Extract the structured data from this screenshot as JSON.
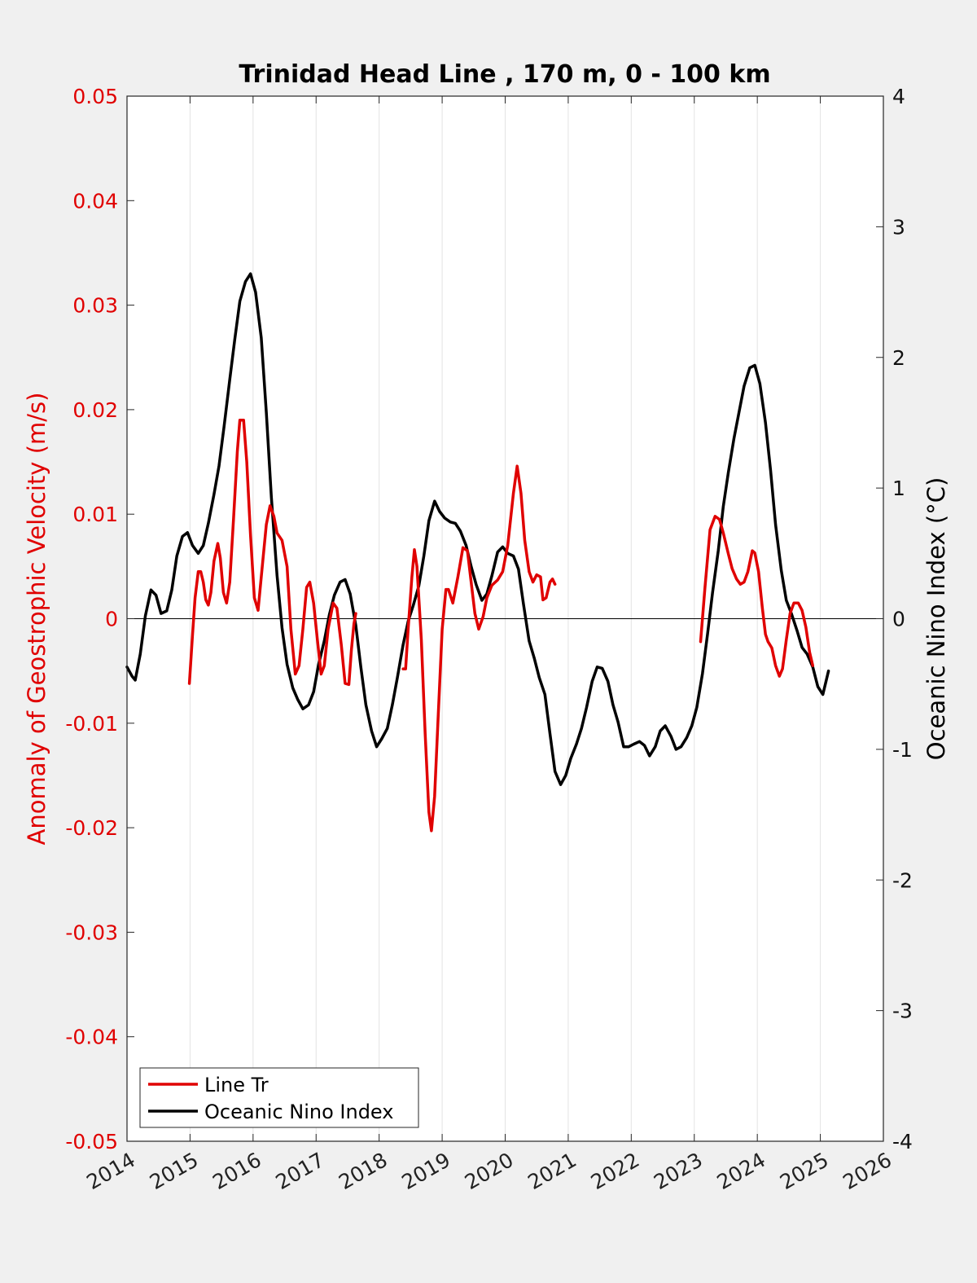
{
  "chart_data": {
    "type": "line",
    "title": "Trinidad Head Line , 170 m, 0 - 100 km",
    "ylabel_left": "Anomaly of Geostrophic Velocity (m/s)",
    "ylabel_right": "Oceanic Nino Index (°C)",
    "xlim": [
      2014,
      2026
    ],
    "ylim_left": [
      -0.05,
      0.05
    ],
    "ylim_right": [
      -4,
      4
    ],
    "x_ticks": [
      "2014",
      "2015",
      "2016",
      "2017",
      "2018",
      "2019",
      "2020",
      "2021",
      "2022",
      "2023",
      "2024",
      "2025",
      "2026"
    ],
    "y_ticks_left": [
      "0.05",
      "0.04",
      "0.03",
      "0.02",
      "0.01",
      "0",
      "-0.01",
      "-0.02",
      "-0.03",
      "-0.04",
      "-0.05"
    ],
    "y_ticks_right": [
      "4",
      "3",
      "2",
      "1",
      "0",
      "-1",
      "-2",
      "-3",
      "-4"
    ],
    "grid": "vertical",
    "legend_position": "bottom-left",
    "colors": {
      "line_tr": "#e00000",
      "oni": "#000000",
      "left_axis": "#e00000",
      "background": "#f0f0f0"
    },
    "series": [
      {
        "name": "Line Tr",
        "axis": "left",
        "segments": [
          [
            [
              2014.99,
              -0.0062
            ],
            [
              2015.04,
              -0.0015
            ],
            [
              2015.08,
              0.002
            ],
            [
              2015.13,
              0.0045
            ],
            [
              2015.17,
              0.0045
            ],
            [
              2015.21,
              0.0035
            ],
            [
              2015.25,
              0.0018
            ],
            [
              2015.29,
              0.0013
            ],
            [
              2015.33,
              0.0025
            ],
            [
              2015.38,
              0.0055
            ],
            [
              2015.44,
              0.0072
            ],
            [
              2015.48,
              0.0058
            ],
            [
              2015.53,
              0.0025
            ],
            [
              2015.58,
              0.0015
            ],
            [
              2015.63,
              0.0035
            ],
            [
              2015.69,
              0.0095
            ],
            [
              2015.75,
              0.016
            ],
            [
              2015.79,
              0.019
            ],
            [
              2015.85,
              0.019
            ],
            [
              2015.9,
              0.015
            ],
            [
              2015.96,
              0.008
            ],
            [
              2016.02,
              0.002
            ],
            [
              2016.08,
              0.0008
            ],
            [
              2016.13,
              0.004
            ],
            [
              2016.21,
              0.009
            ],
            [
              2016.27,
              0.0108
            ],
            [
              2016.33,
              0.0098
            ],
            [
              2016.38,
              0.0082
            ],
            [
              2016.46,
              0.0075
            ],
            [
              2016.54,
              0.005
            ],
            [
              2016.6,
              -0.001
            ],
            [
              2016.67,
              -0.0053
            ],
            [
              2016.73,
              -0.0045
            ],
            [
              2016.79,
              -0.001
            ],
            [
              2016.85,
              0.003
            ],
            [
              2016.9,
              0.0035
            ],
            [
              2016.96,
              0.0015
            ],
            [
              2017.02,
              -0.002
            ],
            [
              2017.08,
              -0.0053
            ],
            [
              2017.13,
              -0.0045
            ],
            [
              2017.19,
              -0.001
            ],
            [
              2017.27,
              0.0015
            ],
            [
              2017.33,
              0.001
            ],
            [
              2017.4,
              -0.0025
            ],
            [
              2017.46,
              -0.0062
            ],
            [
              2017.52,
              -0.0063
            ],
            [
              2017.56,
              -0.003
            ],
            [
              2017.6,
              -0.0005
            ],
            [
              2017.63,
              0.0005
            ]
          ],
          [
            [
              2018.38,
              -0.0048
            ],
            [
              2018.42,
              -0.0048
            ],
            [
              2018.46,
              -0.001
            ],
            [
              2018.52,
              0.004
            ],
            [
              2018.56,
              0.0066
            ],
            [
              2018.6,
              0.005
            ],
            [
              2018.67,
              -0.002
            ],
            [
              2018.73,
              -0.011
            ],
            [
              2018.79,
              -0.0185
            ],
            [
              2018.83,
              -0.0203
            ],
            [
              2018.88,
              -0.017
            ],
            [
              2018.94,
              -0.009
            ],
            [
              2019.0,
              -0.001
            ],
            [
              2019.06,
              0.0028
            ],
            [
              2019.1,
              0.0028
            ],
            [
              2019.17,
              0.0015
            ],
            [
              2019.25,
              0.004
            ],
            [
              2019.33,
              0.0068
            ],
            [
              2019.4,
              0.0065
            ],
            [
              2019.46,
              0.0035
            ],
            [
              2019.52,
              0.0005
            ],
            [
              2019.58,
              -0.001
            ],
            [
              2019.65,
              0.0002
            ],
            [
              2019.71,
              0.002
            ],
            [
              2019.79,
              0.0032
            ],
            [
              2019.88,
              0.0037
            ],
            [
              2019.96,
              0.0045
            ],
            [
              2020.04,
              0.007
            ],
            [
              2020.13,
              0.012
            ],
            [
              2020.19,
              0.0146
            ],
            [
              2020.25,
              0.012
            ],
            [
              2020.31,
              0.0075
            ],
            [
              2020.38,
              0.0045
            ],
            [
              2020.44,
              0.0035
            ],
            [
              2020.5,
              0.0042
            ],
            [
              2020.56,
              0.004
            ],
            [
              2020.6,
              0.0018
            ],
            [
              2020.65,
              0.002
            ],
            [
              2020.71,
              0.0035
            ],
            [
              2020.75,
              0.0038
            ],
            [
              2020.79,
              0.0033
            ]
          ],
          [
            [
              2023.1,
              -0.0022
            ],
            [
              2023.17,
              0.003
            ],
            [
              2023.25,
              0.0085
            ],
            [
              2023.33,
              0.0098
            ],
            [
              2023.4,
              0.0095
            ],
            [
              2023.46,
              0.0082
            ],
            [
              2023.54,
              0.0062
            ],
            [
              2023.6,
              0.0048
            ],
            [
              2023.67,
              0.0038
            ],
            [
              2023.73,
              0.0033
            ],
            [
              2023.79,
              0.0035
            ],
            [
              2023.85,
              0.0045
            ],
            [
              2023.92,
              0.0065
            ],
            [
              2023.96,
              0.0063
            ],
            [
              2024.02,
              0.0045
            ],
            [
              2024.08,
              0.001
            ],
            [
              2024.13,
              -0.0015
            ],
            [
              2024.17,
              -0.0022
            ],
            [
              2024.23,
              -0.0028
            ],
            [
              2024.29,
              -0.0045
            ],
            [
              2024.35,
              -0.0055
            ],
            [
              2024.4,
              -0.0048
            ],
            [
              2024.46,
              -0.002
            ],
            [
              2024.52,
              0.0005
            ],
            [
              2024.58,
              0.0015
            ],
            [
              2024.65,
              0.0015
            ],
            [
              2024.71,
              0.0008
            ],
            [
              2024.77,
              -0.0008
            ],
            [
              2024.83,
              -0.0032
            ],
            [
              2024.88,
              -0.0045
            ]
          ]
        ]
      },
      {
        "name": "Oceanic Nino Index",
        "axis": "right",
        "segments": [
          [
            [
              2014.0,
              -0.37
            ],
            [
              2014.08,
              -0.44
            ],
            [
              2014.13,
              -0.47
            ],
            [
              2014.21,
              -0.27
            ],
            [
              2014.29,
              0.02
            ],
            [
              2014.38,
              0.22
            ],
            [
              2014.46,
              0.18
            ],
            [
              2014.54,
              0.04
            ],
            [
              2014.63,
              0.06
            ],
            [
              2014.71,
              0.22
            ],
            [
              2014.79,
              0.48
            ],
            [
              2014.88,
              0.63
            ],
            [
              2014.96,
              0.66
            ],
            [
              2015.04,
              0.56
            ],
            [
              2015.13,
              0.5
            ],
            [
              2015.21,
              0.56
            ],
            [
              2015.29,
              0.73
            ],
            [
              2015.38,
              0.95
            ],
            [
              2015.46,
              1.17
            ],
            [
              2015.54,
              1.47
            ],
            [
              2015.63,
              1.83
            ],
            [
              2015.71,
              2.14
            ],
            [
              2015.79,
              2.43
            ],
            [
              2015.88,
              2.58
            ],
            [
              2015.96,
              2.64
            ],
            [
              2016.04,
              2.5
            ],
            [
              2016.13,
              2.15
            ],
            [
              2016.21,
              1.58
            ],
            [
              2016.29,
              0.93
            ],
            [
              2016.38,
              0.33
            ],
            [
              2016.46,
              -0.07
            ],
            [
              2016.54,
              -0.35
            ],
            [
              2016.63,
              -0.53
            ],
            [
              2016.71,
              -0.62
            ],
            [
              2016.79,
              -0.69
            ],
            [
              2016.88,
              -0.66
            ],
            [
              2016.96,
              -0.56
            ],
            [
              2017.04,
              -0.35
            ],
            [
              2017.13,
              -0.17
            ],
            [
              2017.21,
              0.03
            ],
            [
              2017.29,
              0.18
            ],
            [
              2017.38,
              0.28
            ],
            [
              2017.46,
              0.3
            ],
            [
              2017.54,
              0.19
            ],
            [
              2017.63,
              -0.05
            ],
            [
              2017.71,
              -0.37
            ],
            [
              2017.79,
              -0.66
            ],
            [
              2017.88,
              -0.86
            ],
            [
              2017.96,
              -0.98
            ],
            [
              2018.04,
              -0.92
            ],
            [
              2018.13,
              -0.84
            ],
            [
              2018.21,
              -0.66
            ],
            [
              2018.29,
              -0.45
            ],
            [
              2018.38,
              -0.2
            ],
            [
              2018.46,
              -0.02
            ],
            [
              2018.54,
              0.1
            ],
            [
              2018.63,
              0.25
            ],
            [
              2018.71,
              0.48
            ],
            [
              2018.79,
              0.75
            ],
            [
              2018.88,
              0.9
            ],
            [
              2018.96,
              0.82
            ],
            [
              2019.04,
              0.77
            ],
            [
              2019.13,
              0.74
            ],
            [
              2019.21,
              0.73
            ],
            [
              2019.29,
              0.67
            ],
            [
              2019.38,
              0.56
            ],
            [
              2019.46,
              0.4
            ],
            [
              2019.54,
              0.26
            ],
            [
              2019.63,
              0.14
            ],
            [
              2019.71,
              0.19
            ],
            [
              2019.79,
              0.33
            ],
            [
              2019.88,
              0.51
            ],
            [
              2019.96,
              0.55
            ],
            [
              2020.04,
              0.5
            ],
            [
              2020.13,
              0.48
            ],
            [
              2020.21,
              0.38
            ],
            [
              2020.29,
              0.11
            ],
            [
              2020.38,
              -0.17
            ],
            [
              2020.46,
              -0.3
            ],
            [
              2020.54,
              -0.45
            ],
            [
              2020.63,
              -0.58
            ],
            [
              2020.71,
              -0.88
            ],
            [
              2020.79,
              -1.17
            ],
            [
              2020.88,
              -1.27
            ],
            [
              2020.96,
              -1.2
            ],
            [
              2021.04,
              -1.07
            ],
            [
              2021.13,
              -0.96
            ],
            [
              2021.21,
              -0.84
            ],
            [
              2021.29,
              -0.68
            ],
            [
              2021.38,
              -0.48
            ],
            [
              2021.46,
              -0.37
            ],
            [
              2021.54,
              -0.38
            ],
            [
              2021.63,
              -0.48
            ],
            [
              2021.71,
              -0.66
            ],
            [
              2021.79,
              -0.79
            ],
            [
              2021.88,
              -0.98
            ],
            [
              2021.96,
              -0.98
            ],
            [
              2022.04,
              -0.96
            ],
            [
              2022.13,
              -0.94
            ],
            [
              2022.21,
              -0.97
            ],
            [
              2022.29,
              -1.05
            ],
            [
              2022.38,
              -0.98
            ],
            [
              2022.46,
              -0.86
            ],
            [
              2022.54,
              -0.82
            ],
            [
              2022.63,
              -0.9
            ],
            [
              2022.71,
              -1.0
            ],
            [
              2022.79,
              -0.98
            ],
            [
              2022.88,
              -0.91
            ],
            [
              2022.96,
              -0.82
            ],
            [
              2023.04,
              -0.68
            ],
            [
              2023.13,
              -0.42
            ],
            [
              2023.21,
              -0.12
            ],
            [
              2023.29,
              0.2
            ],
            [
              2023.38,
              0.52
            ],
            [
              2023.46,
              0.86
            ],
            [
              2023.54,
              1.12
            ],
            [
              2023.63,
              1.38
            ],
            [
              2023.71,
              1.58
            ],
            [
              2023.79,
              1.78
            ],
            [
              2023.88,
              1.92
            ],
            [
              2023.96,
              1.94
            ],
            [
              2024.04,
              1.8
            ],
            [
              2024.13,
              1.5
            ],
            [
              2024.21,
              1.14
            ],
            [
              2024.29,
              0.72
            ],
            [
              2024.38,
              0.37
            ],
            [
              2024.46,
              0.14
            ],
            [
              2024.54,
              0.04
            ],
            [
              2024.63,
              -0.09
            ],
            [
              2024.71,
              -0.22
            ],
            [
              2024.79,
              -0.27
            ],
            [
              2024.88,
              -0.37
            ],
            [
              2024.96,
              -0.52
            ],
            [
              2025.04,
              -0.58
            ],
            [
              2025.13,
              -0.4
            ]
          ]
        ]
      }
    ]
  }
}
